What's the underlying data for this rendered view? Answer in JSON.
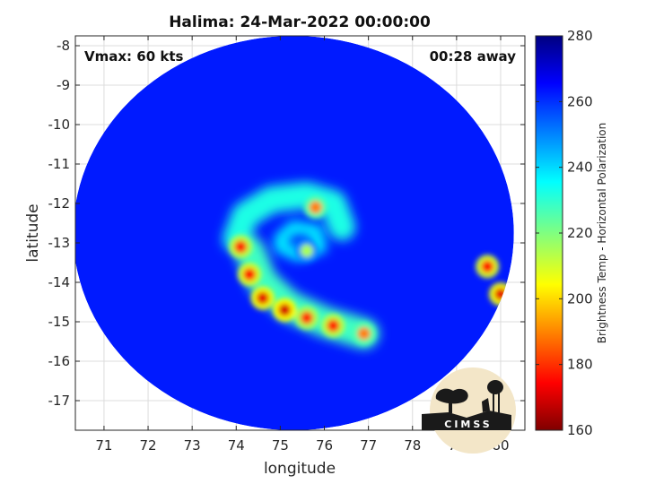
{
  "chart_data": {
    "type": "heatmap",
    "title": "Halima: 24-Mar-2022 00:00:00",
    "xlabel": "longitude",
    "ylabel": "latitude",
    "xlim": [
      70.35,
      80.55
    ],
    "ylim": [
      -17.75,
      -7.75
    ],
    "x_ticks": [
      "71",
      "72",
      "73",
      "74",
      "75",
      "76",
      "77",
      "78",
      "79",
      "80"
    ],
    "y_ticks": [
      "-8",
      "-9",
      "-10",
      "-11",
      "-12",
      "-13",
      "-14",
      "-15",
      "-16",
      "-17"
    ],
    "grid": true,
    "annotations": {
      "vmax": "Vmax: 60 kts",
      "away": "00:28 away"
    },
    "colorbar": {
      "label": "Brightness Temp - Horizontal Polarization",
      "range": [
        160,
        280
      ],
      "ticks": [
        "280",
        "260",
        "240",
        "220",
        "200",
        "180",
        "160"
      ],
      "colormap": "jet"
    },
    "background_value": 262,
    "swath": {
      "center": [
        75.3,
        -12.75
      ],
      "radius_deg_lon": 5.0,
      "radius_deg_lat": 5.0
    },
    "features": [
      {
        "type": "cold_spot",
        "lon": 74.1,
        "lat": -13.1,
        "value": 178
      },
      {
        "type": "cold_spot",
        "lon": 74.3,
        "lat": -13.8,
        "value": 175
      },
      {
        "type": "cold_spot",
        "lon": 74.6,
        "lat": -14.4,
        "value": 172
      },
      {
        "type": "cold_spot",
        "lon": 75.1,
        "lat": -14.7,
        "value": 170
      },
      {
        "type": "cold_spot",
        "lon": 75.6,
        "lat": -14.9,
        "value": 180
      },
      {
        "type": "cold_spot",
        "lon": 76.2,
        "lat": -15.1,
        "value": 178
      },
      {
        "type": "cold_spot",
        "lon": 76.9,
        "lat": -15.3,
        "value": 190
      },
      {
        "type": "cold_spot",
        "lon": 75.8,
        "lat": -12.1,
        "value": 190
      },
      {
        "type": "cold_spot",
        "lon": 79.7,
        "lat": -13.6,
        "value": 175
      },
      {
        "type": "cold_spot",
        "lon": 80.0,
        "lat": -14.3,
        "value": 172
      },
      {
        "type": "cold_spot",
        "lon": 75.6,
        "lat": -13.2,
        "value": 215
      }
    ],
    "logo_text": "CIMSS"
  }
}
